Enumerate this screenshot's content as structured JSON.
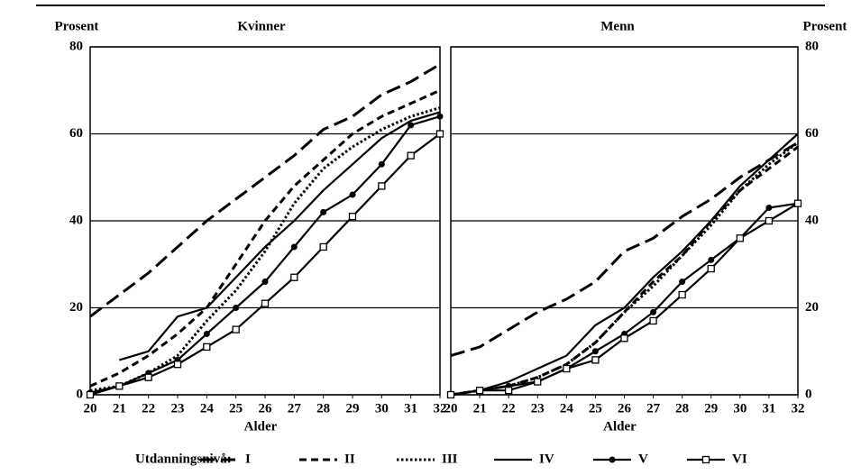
{
  "chart_data": [
    {
      "type": "line",
      "title": "Kvinner",
      "ylabel": "Prosent",
      "xlabel": "Alder",
      "yaxis_side": "left",
      "x": [
        20,
        21,
        22,
        23,
        24,
        25,
        26,
        27,
        28,
        29,
        30,
        31,
        32
      ],
      "xlim": [
        20,
        32
      ],
      "xticks": [
        20,
        21,
        22,
        23,
        24,
        25,
        26,
        27,
        28,
        29,
        30,
        31,
        32
      ],
      "ylim": [
        0,
        80
      ],
      "yticks": [
        0,
        20,
        40,
        60,
        80
      ],
      "grid": true,
      "series": [
        {
          "name": "I",
          "color": "#000000",
          "style": "long-dash",
          "values": [
            18,
            23,
            28,
            34,
            40,
            45,
            50,
            55,
            61,
            64,
            69,
            72,
            76
          ]
        },
        {
          "name": "II",
          "color": "#000000",
          "style": "dash",
          "values": [
            2,
            5,
            9,
            14,
            20,
            30,
            40,
            48,
            54,
            60,
            64,
            67,
            70
          ]
        },
        {
          "name": "III",
          "color": "#000000",
          "style": "dot",
          "values": [
            1,
            2,
            5,
            9,
            17,
            24,
            33,
            44,
            52,
            57,
            61,
            64,
            66
          ]
        },
        {
          "name": "IV",
          "color": "#000000",
          "style": "solid",
          "values": [
            null,
            8,
            10,
            18,
            20,
            27,
            34,
            40,
            47,
            53,
            59,
            63,
            65
          ]
        },
        {
          "name": "V",
          "color": "#000000",
          "style": "solid",
          "marker": "circle",
          "values": [
            0.5,
            2,
            5,
            8,
            14,
            20,
            26,
            34,
            42,
            46,
            53,
            62,
            64
          ]
        },
        {
          "name": "VI",
          "color": "#000000",
          "style": "solid",
          "marker": "square",
          "values": [
            0,
            2,
            4,
            7,
            11,
            15,
            21,
            27,
            34,
            41,
            48,
            55,
            60
          ]
        }
      ]
    },
    {
      "type": "line",
      "title": "Menn",
      "ylabel": "Prosent",
      "xlabel": "Alder",
      "yaxis_side": "right",
      "x": [
        20,
        21,
        22,
        23,
        24,
        25,
        26,
        27,
        28,
        29,
        30,
        31,
        32
      ],
      "xlim": [
        20,
        32
      ],
      "xticks": [
        20,
        21,
        22,
        23,
        24,
        25,
        26,
        27,
        28,
        29,
        30,
        31,
        32
      ],
      "ylim": [
        0,
        80
      ],
      "yticks": [
        0,
        20,
        40,
        60,
        80
      ],
      "grid": true,
      "series": [
        {
          "name": "I",
          "color": "#000000",
          "style": "long-dash",
          "values": [
            9,
            11,
            15,
            19,
            22,
            26,
            33,
            36,
            41,
            45,
            50,
            54,
            58
          ]
        },
        {
          "name": "II",
          "color": "#000000",
          "style": "dash",
          "values": [
            0,
            1,
            2,
            4,
            7,
            12,
            19,
            26,
            32,
            40,
            47,
            52,
            57
          ]
        },
        {
          "name": "III",
          "color": "#000000",
          "style": "dot",
          "values": [
            0,
            1,
            2,
            4,
            7,
            12,
            19,
            25,
            32,
            39,
            47,
            53,
            58
          ]
        },
        {
          "name": "IV",
          "color": "#000000",
          "style": "solid",
          "values": [
            0,
            1,
            3,
            6,
            9,
            16,
            20,
            27,
            33,
            40,
            48,
            54,
            60
          ]
        },
        {
          "name": "V",
          "color": "#000000",
          "style": "solid",
          "marker": "circle",
          "values": [
            0,
            1,
            2,
            3,
            6,
            10,
            14,
            19,
            26,
            31,
            36,
            43,
            44
          ]
        },
        {
          "name": "VI",
          "color": "#000000",
          "style": "solid",
          "marker": "square",
          "values": [
            0,
            1,
            1,
            3,
            6,
            8,
            13,
            17,
            23,
            29,
            36,
            40,
            44
          ]
        }
      ]
    }
  ],
  "legend": {
    "title": "Utdanningsnivå:"
  }
}
